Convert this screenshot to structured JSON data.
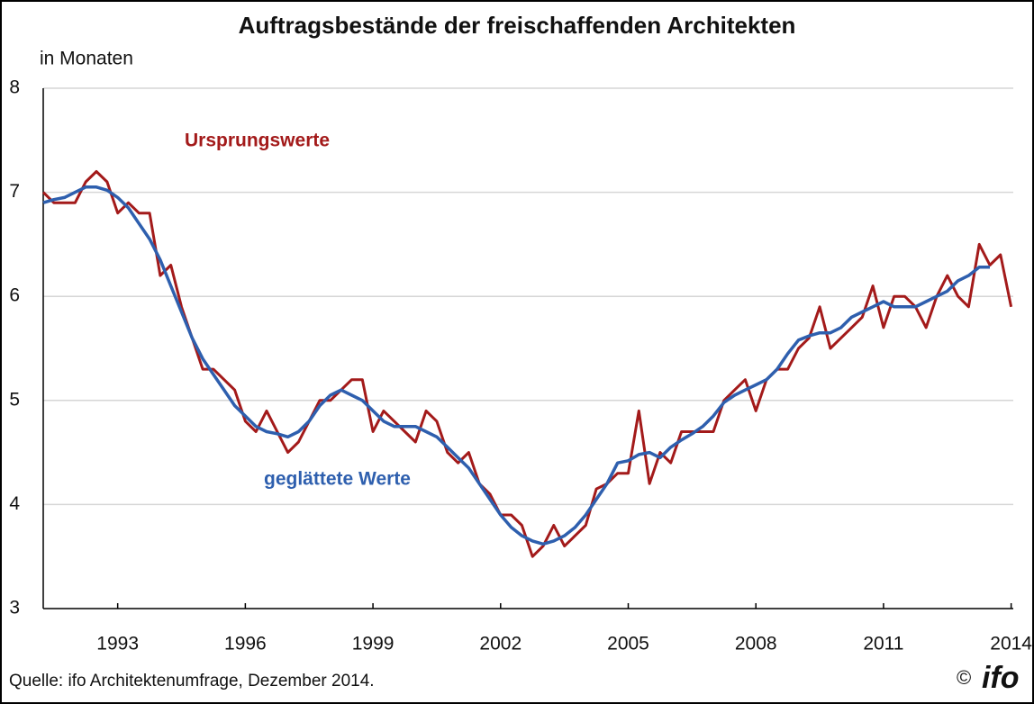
{
  "chart_data": {
    "type": "line",
    "title": "Auftragsbestände der freischaffenden Architekten",
    "y_label": "in Monaten",
    "source": "Quelle: ifo Architektenumfrage, Dezember   2014.",
    "copyright": "©",
    "logo": "ifo",
    "x": [
      1991.25,
      1991.5,
      1991.75,
      1992,
      1992.25,
      1992.5,
      1992.75,
      1993,
      1993.25,
      1993.5,
      1993.75,
      1994,
      1994.25,
      1994.5,
      1994.75,
      1995,
      1995.25,
      1995.5,
      1995.75,
      1996,
      1996.25,
      1996.5,
      1996.75,
      1997,
      1997.25,
      1997.5,
      1997.75,
      1998,
      1998.25,
      1998.5,
      1998.75,
      1999,
      1999.25,
      1999.5,
      1999.75,
      2000,
      2000.25,
      2000.5,
      2000.75,
      2001,
      2001.25,
      2001.5,
      2001.75,
      2002,
      2002.25,
      2002.5,
      2002.75,
      2003,
      2003.25,
      2003.5,
      2003.75,
      2004,
      2004.25,
      2004.5,
      2004.75,
      2005,
      2005.25,
      2005.5,
      2005.75,
      2006,
      2006.25,
      2006.5,
      2006.75,
      2007,
      2007.25,
      2007.5,
      2007.75,
      2008,
      2008.25,
      2008.5,
      2008.75,
      2009,
      2009.25,
      2009.5,
      2009.75,
      2010,
      2010.25,
      2010.5,
      2010.75,
      2011,
      2011.25,
      2011.5,
      2011.75,
      2012,
      2012.25,
      2012.5,
      2012.75,
      2013,
      2013.25,
      2013.5,
      2013.75,
      2014
    ],
    "series": [
      {
        "name": "Ursprungswerte",
        "color": "#a31a1a",
        "values": [
          7.0,
          6.9,
          6.9,
          6.9,
          7.1,
          7.2,
          7.1,
          6.8,
          6.9,
          6.8,
          6.8,
          6.2,
          6.3,
          5.9,
          5.6,
          5.3,
          5.3,
          5.2,
          5.1,
          4.8,
          4.7,
          4.9,
          4.7,
          4.5,
          4.6,
          4.8,
          5.0,
          5.0,
          5.1,
          5.2,
          5.2,
          4.7,
          4.9,
          4.8,
          4.7,
          4.6,
          4.9,
          4.8,
          4.5,
          4.4,
          4.5,
          4.2,
          4.1,
          3.9,
          3.9,
          3.8,
          3.5,
          3.6,
          3.8,
          3.6,
          3.7,
          3.8,
          4.15,
          4.2,
          4.3,
          4.3,
          4.9,
          4.2,
          4.5,
          4.4,
          4.7,
          4.7,
          4.7,
          4.7,
          5.0,
          5.1,
          5.2,
          4.9,
          5.2,
          5.3,
          5.3,
          5.5,
          5.6,
          5.9,
          5.5,
          5.6,
          5.7,
          5.8,
          6.1,
          5.7,
          6.0,
          6.0,
          5.9,
          5.7,
          6.0,
          6.2,
          6.0,
          5.9,
          6.5,
          6.3,
          6.4,
          5.9
        ]
      },
      {
        "name": "geglättete Werte",
        "color": "#2e5fae",
        "values": [
          6.9,
          6.93,
          6.95,
          7.0,
          7.05,
          7.05,
          7.02,
          6.95,
          6.85,
          6.7,
          6.55,
          6.35,
          6.1,
          5.85,
          5.6,
          5.4,
          5.25,
          5.1,
          4.95,
          4.85,
          4.75,
          4.7,
          4.68,
          4.65,
          4.7,
          4.8,
          4.95,
          5.05,
          5.1,
          5.05,
          5.0,
          4.9,
          4.8,
          4.75,
          4.75,
          4.75,
          4.7,
          4.65,
          4.55,
          4.45,
          4.35,
          4.2,
          4.05,
          3.9,
          3.78,
          3.7,
          3.65,
          3.62,
          3.65,
          3.7,
          3.78,
          3.9,
          4.05,
          4.2,
          4.4,
          4.42,
          4.48,
          4.5,
          4.45,
          4.55,
          4.62,
          4.68,
          4.75,
          4.85,
          4.98,
          5.05,
          5.1,
          5.15,
          5.2,
          5.3,
          5.45,
          5.58,
          5.62,
          5.65,
          5.65,
          5.7,
          5.8,
          5.85,
          5.9,
          5.95,
          5.9,
          5.9,
          5.9,
          5.95,
          6.0,
          6.05,
          6.15,
          6.2,
          6.28,
          6.28,
          null,
          null
        ]
      }
    ],
    "xlim": [
      1991.25,
      2014.05
    ],
    "xticks": [
      1993,
      1996,
      1999,
      2002,
      2005,
      2008,
      2011,
      2014
    ],
    "ylim": [
      3,
      8
    ],
    "yticks": [
      3,
      4,
      5,
      6,
      7,
      8
    ],
    "grid": true
  }
}
